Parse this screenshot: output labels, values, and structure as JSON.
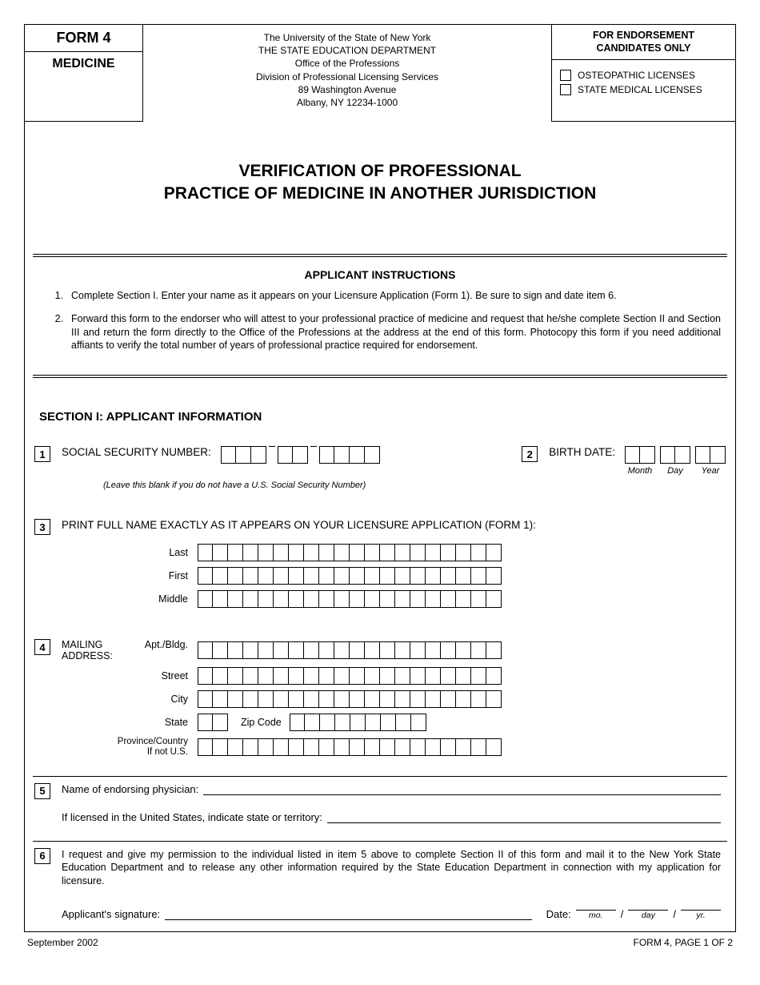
{
  "header": {
    "form_box_line1": "FORM 4",
    "form_box_line2": "MEDICINE",
    "uni": "The University of the State of New York",
    "dept": "THE STATE EDUCATION DEPARTMENT",
    "office": "Office of the Professions",
    "division": "Division of Professional Licensing Services",
    "addr1": "89 Washington Avenue",
    "addr2": "Albany, NY 12234-1000",
    "right_title1": "FOR ENDORSEMENT",
    "right_title2": "CANDIDATES ONLY",
    "chk1": "OSTEOPATHIC LICENSES",
    "chk2": "STATE MEDICAL LICENSES"
  },
  "title": {
    "line1": "VERIFICATION OF PROFESSIONAL",
    "line2": "PRACTICE OF MEDICINE IN ANOTHER JURISDICTION"
  },
  "instructions": {
    "heading": "APPLICANT INSTRUCTIONS",
    "items": [
      "Complete Section I.   Enter your name as it appears on your Licensure Application (Form 1). Be sure to sign and date item 6.",
      "Forward this form to the endorser who will attest to your professional practice of medicine and request that he/she complete Section II and Section III and return the form directly to the Office of the Professions at the address at the end of this form.   Photocopy this form if you need additional affiants to verify the total number of years of professional practice required for endorsement."
    ]
  },
  "section1": {
    "title": "SECTION I:  APPLICANT INFORMATION",
    "ssn_label": "SOCIAL SECURITY NUMBER:",
    "ssn_hint": "(Leave this blank if you do not have a U.S. Social Security Number)",
    "birth_label": "BIRTH DATE:",
    "bd_month": "Month",
    "bd_day": "Day",
    "bd_year": "Year",
    "name_label": "PRINT FULL NAME EXACTLY AS IT APPEARS  ON YOUR LICENSURE APPLICATION (FORM 1):",
    "last": "Last",
    "first": "First",
    "middle": "Middle",
    "mail_label": "MAILING ADDRESS:",
    "apt": "Apt./Bldg.",
    "street": "Street",
    "city": "City",
    "state": "State",
    "zip": "Zip Code",
    "province": "Province/Country If not U.S."
  },
  "section5": {
    "endorser": "Name of endorsing physician:",
    "licensed": "If licensed in the United States, indicate state or territory:"
  },
  "section6": {
    "text": "I request and give my permission to the individual listed in item 5 above to complete Section II of this form and mail it to the New York State Education Department and to release any other information required by the State Education Department in connection with my application for licensure.",
    "sig": "Applicant's signature:",
    "date": "Date:",
    "mo": "mo.",
    "day": "day",
    "yr": "yr."
  },
  "footer": {
    "left": "September 2002",
    "right": "FORM 4, PAGE 1 OF 2"
  },
  "boxes": {
    "ssn": [
      3,
      2,
      4
    ],
    "bd": [
      2,
      2,
      2
    ],
    "name": 20,
    "state": 2,
    "zip": 9
  }
}
